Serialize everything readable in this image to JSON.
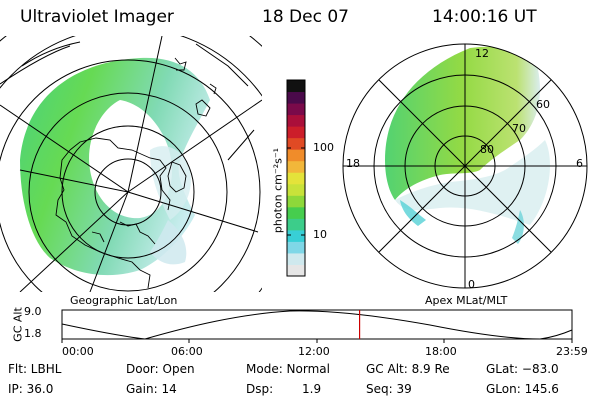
{
  "header": {
    "instrument": "Ultraviolet Imager",
    "date": "18 Dec 07",
    "time": "14:00:16 UT"
  },
  "left_map": {
    "caption": "Geographic Lat/Lon"
  },
  "right_map": {
    "caption": "Apex MLat/MLT",
    "mlt_labels": [
      "12",
      "18",
      "6",
      "0"
    ],
    "mlat_labels": [
      "60",
      "70",
      "80"
    ]
  },
  "colorbar": {
    "label": "photon cm⁻²s⁻¹",
    "ticks": [
      "100",
      "10"
    ],
    "scale": "log",
    "colors": [
      "#e6e6e6",
      "#cfe9ee",
      "#7fd7e7",
      "#38cfd6",
      "#3ccd8a",
      "#46cd4e",
      "#8ed83a",
      "#c8e23a",
      "#e4e33a",
      "#f2b73a",
      "#f08c2a",
      "#e04a24",
      "#cc1e2a",
      "#aa0f3a",
      "#7a0a4a",
      "#4a0a4a",
      "#111111"
    ]
  },
  "altitude_plot": {
    "ylabel": "GC Alt",
    "ymax_label": "9.0",
    "ymin_label": "1.8",
    "xticks": [
      "00:00",
      "06:00",
      "12:00",
      "18:00",
      "23:59"
    ],
    "current_time_fraction": 0.5835,
    "marker_color": "#cc0000"
  },
  "status": {
    "row1": {
      "flt": "Flt: LBHL",
      "door": "Door: Open",
      "mode": "Mode: Normal",
      "gcalt": "GC Alt: 8.9 Re",
      "glat": "GLat: −83.0"
    },
    "row2": {
      "ip": "IP: 36.0",
      "gain": "Gain: 14",
      "dsp_label": "Dsp:",
      "dsp_value": "1.9",
      "seq": "Seq: 39",
      "glon": "GLon: 145.6"
    }
  }
}
